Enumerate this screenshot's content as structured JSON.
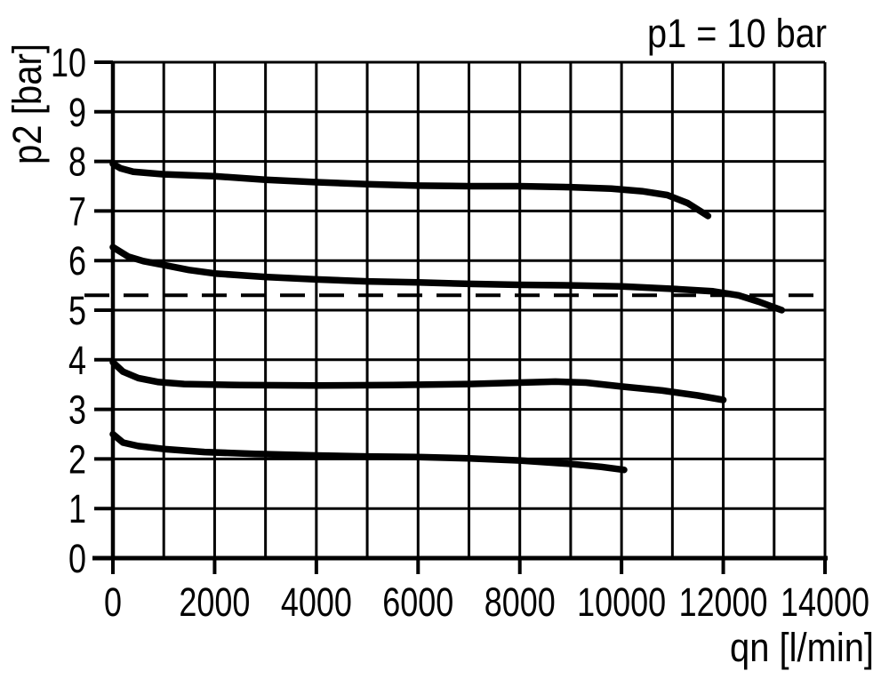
{
  "chart_data": {
    "type": "line",
    "title": "p1 = 10 bar",
    "xlabel": "qn [l/min]",
    "ylabel": "p2 [bar]",
    "xlim": [
      0,
      14000
    ],
    "ylim": [
      0,
      10
    ],
    "x_grid_step": 1000,
    "y_grid_step": 1,
    "x_ticks": [
      {
        "value": 0,
        "label": "0"
      },
      {
        "value": 2000,
        "label": "2000"
      },
      {
        "value": 4000,
        "label": "4000"
      },
      {
        "value": 6000,
        "label": "6000"
      },
      {
        "value": 8000,
        "label": "8000"
      },
      {
        "value": 10000,
        "label": "10000"
      },
      {
        "value": 12000,
        "label": "12000"
      },
      {
        "value": 14000,
        "label": "14000"
      }
    ],
    "y_ticks": [
      {
        "value": 0,
        "label": "0"
      },
      {
        "value": 1,
        "label": "1"
      },
      {
        "value": 2,
        "label": "2"
      },
      {
        "value": 3,
        "label": "3"
      },
      {
        "value": 4,
        "label": "4"
      },
      {
        "value": 5,
        "label": "5"
      },
      {
        "value": 6,
        "label": "6"
      },
      {
        "value": 7,
        "label": "7"
      },
      {
        "value": 8,
        "label": "8"
      },
      {
        "value": 9,
        "label": "9"
      },
      {
        "value": 10,
        "label": "10"
      }
    ],
    "reference_line": {
      "axis": "y",
      "value": 5.3,
      "style": "dashed"
    },
    "grid": "on",
    "legend": "none",
    "line_color": "#000000",
    "series": [
      {
        "id": "curve-1",
        "points": [
          [
            0,
            7.95
          ],
          [
            150,
            7.86
          ],
          [
            400,
            7.79
          ],
          [
            1000,
            7.74
          ],
          [
            2000,
            7.7
          ],
          [
            3000,
            7.63
          ],
          [
            4000,
            7.58
          ],
          [
            5000,
            7.54
          ],
          [
            6000,
            7.51
          ],
          [
            7000,
            7.5
          ],
          [
            8000,
            7.5
          ],
          [
            9000,
            7.48
          ],
          [
            9800,
            7.45
          ],
          [
            10400,
            7.4
          ],
          [
            10900,
            7.32
          ],
          [
            11300,
            7.16
          ],
          [
            11700,
            6.9
          ]
        ]
      },
      {
        "id": "curve-2",
        "points": [
          [
            0,
            6.27
          ],
          [
            300,
            6.08
          ],
          [
            600,
            5.99
          ],
          [
            1000,
            5.91
          ],
          [
            1500,
            5.81
          ],
          [
            2000,
            5.74
          ],
          [
            3000,
            5.67
          ],
          [
            4000,
            5.62
          ],
          [
            5000,
            5.58
          ],
          [
            6000,
            5.56
          ],
          [
            7000,
            5.53
          ],
          [
            8000,
            5.51
          ],
          [
            9000,
            5.5
          ],
          [
            10000,
            5.48
          ],
          [
            11000,
            5.43
          ],
          [
            11800,
            5.38
          ],
          [
            12300,
            5.3
          ],
          [
            12700,
            5.17
          ],
          [
            13150,
            5.0
          ]
        ]
      },
      {
        "id": "curve-3",
        "points": [
          [
            0,
            3.95
          ],
          [
            200,
            3.76
          ],
          [
            500,
            3.63
          ],
          [
            900,
            3.55
          ],
          [
            1400,
            3.51
          ],
          [
            2500,
            3.49
          ],
          [
            4000,
            3.48
          ],
          [
            5500,
            3.49
          ],
          [
            7000,
            3.51
          ],
          [
            8000,
            3.54
          ],
          [
            8700,
            3.56
          ],
          [
            9300,
            3.54
          ],
          [
            10000,
            3.46
          ],
          [
            10800,
            3.38
          ],
          [
            11500,
            3.28
          ],
          [
            12000,
            3.19
          ]
        ]
      },
      {
        "id": "curve-4",
        "points": [
          [
            0,
            2.5
          ],
          [
            200,
            2.33
          ],
          [
            500,
            2.26
          ],
          [
            1000,
            2.2
          ],
          [
            1800,
            2.14
          ],
          [
            2800,
            2.1
          ],
          [
            4000,
            2.07
          ],
          [
            5000,
            2.05
          ],
          [
            6000,
            2.04
          ],
          [
            7000,
            2.01
          ],
          [
            8000,
            1.97
          ],
          [
            9000,
            1.9
          ],
          [
            9600,
            1.84
          ],
          [
            10050,
            1.78
          ]
        ]
      }
    ]
  }
}
